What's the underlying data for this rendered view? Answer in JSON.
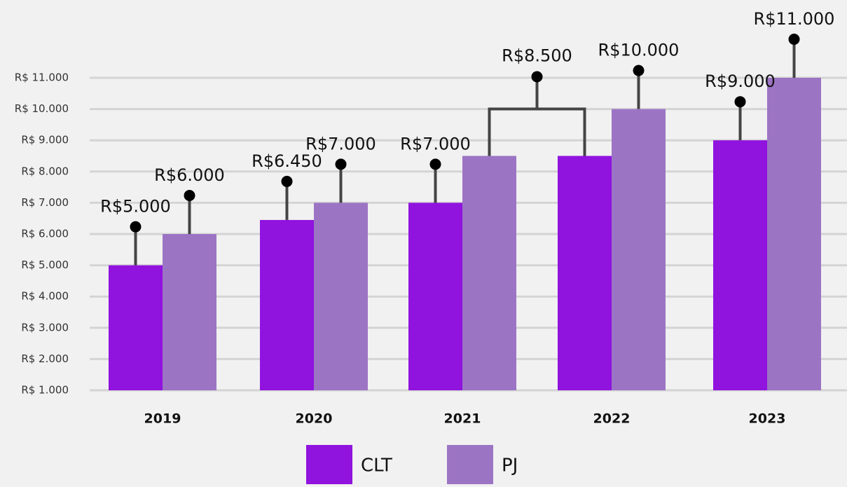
{
  "chart_data": {
    "type": "bar",
    "categories": [
      "2019",
      "2020",
      "2021",
      "2022",
      "2023"
    ],
    "series": [
      {
        "name": "CLT",
        "color": "#9013de",
        "values": [
          5000,
          6450,
          7000,
          8500,
          9000
        ],
        "value_labels": [
          "R$5.000",
          "R$6.450",
          "R$7.000",
          null,
          "R$9.000"
        ]
      },
      {
        "name": "PJ",
        "color": "#9c74c4",
        "values": [
          6000,
          7000,
          8500,
          10000,
          11000
        ],
        "value_labels": [
          "R$6.000",
          "R$7.000",
          "R$8.500",
          "R$10.000",
          "R$11.000"
        ]
      }
    ],
    "ylim": [
      1000,
      11000
    ],
    "yticks": [
      {
        "value": 1000,
        "label": "R$ 1.000"
      },
      {
        "value": 2000,
        "label": "R$ 2.000"
      },
      {
        "value": 3000,
        "label": "R$ 3.000"
      },
      {
        "value": 4000,
        "label": "R$ 4.000"
      },
      {
        "value": 5000,
        "label": "R$ 5.000"
      },
      {
        "value": 6000,
        "label": "R$ 6.000"
      },
      {
        "value": 7000,
        "label": "R$ 7.000"
      },
      {
        "value": 8000,
        "label": "R$ 8.000"
      },
      {
        "value": 9000,
        "label": "R$ 9.000"
      },
      {
        "value": 10000,
        "label": "R$ 10.000"
      },
      {
        "value": 11000,
        "label": "R$ 11.000"
      }
    ],
    "grid": true,
    "legend": "bottom"
  }
}
